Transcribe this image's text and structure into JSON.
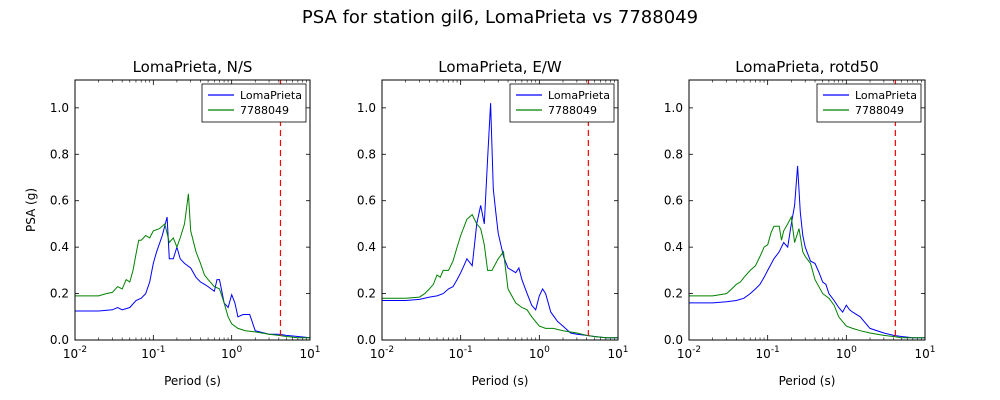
{
  "figure": {
    "suptitle": "PSA for station gil6, LomaPrieta vs 7788049"
  },
  "chart_data": [
    {
      "type": "line",
      "title": "LomaPrieta, N/S",
      "xlabel": "Period (s)",
      "ylabel": "PSA (g)",
      "xscale": "log",
      "xlim": [
        0.01,
        10
      ],
      "ylim": [
        0,
        1.12
      ],
      "x_ticks": [
        0.01,
        0.1,
        1,
        10
      ],
      "x_tick_labels": [
        "10",
        "10",
        "10",
        "10"
      ],
      "x_tick_exponents": [
        "-2",
        "-1",
        "0",
        "1"
      ],
      "y_ticks": [
        0,
        0.2,
        0.4,
        0.6,
        0.8,
        1.0
      ],
      "y_tick_labels": [
        "0.0",
        "0.2",
        "0.4",
        "0.6",
        "0.8",
        "1.0"
      ],
      "legend_position": "top-right",
      "reference_line": {
        "x": 4.2,
        "color": "#ff0000",
        "style": "dashed"
      },
      "series": [
        {
          "name": "LomaPrieta",
          "color": "#0000ff",
          "x": [
            0.01,
            0.02,
            0.03,
            0.035,
            0.04,
            0.05,
            0.06,
            0.07,
            0.08,
            0.09,
            0.1,
            0.11,
            0.13,
            0.15,
            0.16,
            0.18,
            0.2,
            0.22,
            0.25,
            0.3,
            0.35,
            0.4,
            0.45,
            0.5,
            0.6,
            0.65,
            0.7,
            0.8,
            0.9,
            1.0,
            1.1,
            1.2,
            1.4,
            1.7,
            2.0,
            3.0,
            4.0,
            5.0,
            7.0,
            10.0
          ],
          "y": [
            0.125,
            0.125,
            0.13,
            0.14,
            0.13,
            0.14,
            0.17,
            0.18,
            0.2,
            0.25,
            0.33,
            0.38,
            0.45,
            0.53,
            0.35,
            0.35,
            0.4,
            0.35,
            0.33,
            0.31,
            0.27,
            0.25,
            0.24,
            0.23,
            0.21,
            0.26,
            0.26,
            0.16,
            0.14,
            0.195,
            0.16,
            0.1,
            0.11,
            0.11,
            0.04,
            0.025,
            0.025,
            0.02,
            0.015,
            0.01
          ]
        },
        {
          "name": "7788049",
          "color": "#008000",
          "x": [
            0.01,
            0.02,
            0.025,
            0.03,
            0.035,
            0.04,
            0.045,
            0.05,
            0.055,
            0.06,
            0.065,
            0.07,
            0.08,
            0.09,
            0.1,
            0.12,
            0.14,
            0.16,
            0.18,
            0.2,
            0.22,
            0.25,
            0.28,
            0.3,
            0.35,
            0.4,
            0.45,
            0.5,
            0.6,
            0.7,
            0.8,
            0.9,
            1.0,
            1.2,
            1.5,
            2.0,
            3.0,
            4.0,
            5.0,
            7.0,
            10.0
          ],
          "y": [
            0.19,
            0.19,
            0.2,
            0.205,
            0.23,
            0.22,
            0.26,
            0.25,
            0.3,
            0.37,
            0.43,
            0.43,
            0.45,
            0.44,
            0.47,
            0.48,
            0.5,
            0.42,
            0.44,
            0.4,
            0.44,
            0.5,
            0.63,
            0.47,
            0.38,
            0.33,
            0.28,
            0.26,
            0.23,
            0.22,
            0.16,
            0.1,
            0.07,
            0.05,
            0.04,
            0.035,
            0.025,
            0.02,
            0.015,
            0.01,
            0.01
          ]
        }
      ]
    },
    {
      "type": "line",
      "title": "LomaPrieta, E/W",
      "xlabel": "Period (s)",
      "ylabel": "",
      "xscale": "log",
      "xlim": [
        0.01,
        10
      ],
      "ylim": [
        0,
        1.12
      ],
      "x_ticks": [
        0.01,
        0.1,
        1,
        10
      ],
      "x_tick_labels": [
        "10",
        "10",
        "10",
        "10"
      ],
      "x_tick_exponents": [
        "-2",
        "-1",
        "0",
        "1"
      ],
      "y_ticks": [
        0,
        0.2,
        0.4,
        0.6,
        0.8,
        1.0
      ],
      "y_tick_labels": [
        "0.0",
        "0.2",
        "0.4",
        "0.6",
        "0.8",
        "1.0"
      ],
      "legend_position": "top-right",
      "reference_line": {
        "x": 4.2,
        "color": "#ff0000",
        "style": "dashed"
      },
      "series": [
        {
          "name": "LomaPrieta",
          "color": "#0000ff",
          "x": [
            0.01,
            0.02,
            0.03,
            0.04,
            0.05,
            0.06,
            0.07,
            0.08,
            0.09,
            0.1,
            0.11,
            0.12,
            0.14,
            0.15,
            0.16,
            0.18,
            0.2,
            0.22,
            0.24,
            0.26,
            0.28,
            0.3,
            0.35,
            0.4,
            0.45,
            0.5,
            0.55,
            0.6,
            0.7,
            0.8,
            0.9,
            1.0,
            1.1,
            1.2,
            1.4,
            1.7,
            2.0,
            2.5,
            3.0,
            4.0,
            5.0,
            7.0,
            10.0
          ],
          "y": [
            0.17,
            0.17,
            0.175,
            0.185,
            0.19,
            0.2,
            0.22,
            0.23,
            0.26,
            0.29,
            0.32,
            0.35,
            0.32,
            0.41,
            0.5,
            0.58,
            0.5,
            0.78,
            1.02,
            0.65,
            0.55,
            0.46,
            0.36,
            0.31,
            0.3,
            0.29,
            0.31,
            0.26,
            0.2,
            0.15,
            0.13,
            0.19,
            0.22,
            0.2,
            0.12,
            0.08,
            0.06,
            0.03,
            0.025,
            0.02,
            0.015,
            0.01,
            0.01
          ]
        },
        {
          "name": "7788049",
          "color": "#008000",
          "x": [
            0.01,
            0.02,
            0.03,
            0.035,
            0.04,
            0.045,
            0.05,
            0.055,
            0.06,
            0.07,
            0.08,
            0.09,
            0.1,
            0.12,
            0.14,
            0.16,
            0.18,
            0.2,
            0.22,
            0.25,
            0.3,
            0.35,
            0.4,
            0.5,
            0.6,
            0.7,
            0.8,
            1.0,
            1.2,
            1.5,
            2.0,
            3.0,
            4.0,
            5.0,
            7.0,
            10.0
          ],
          "y": [
            0.18,
            0.18,
            0.185,
            0.2,
            0.22,
            0.24,
            0.28,
            0.27,
            0.3,
            0.3,
            0.34,
            0.4,
            0.45,
            0.52,
            0.54,
            0.5,
            0.48,
            0.41,
            0.3,
            0.3,
            0.35,
            0.38,
            0.22,
            0.16,
            0.14,
            0.13,
            0.1,
            0.06,
            0.05,
            0.05,
            0.04,
            0.03,
            0.02,
            0.015,
            0.01,
            0.01
          ]
        }
      ]
    },
    {
      "type": "line",
      "title": "LomaPrieta, rotd50",
      "xlabel": "Period (s)",
      "ylabel": "",
      "xscale": "log",
      "xlim": [
        0.01,
        10
      ],
      "ylim": [
        0,
        1.12
      ],
      "x_ticks": [
        0.01,
        0.1,
        1,
        10
      ],
      "x_tick_labels": [
        "10",
        "10",
        "10",
        "10"
      ],
      "x_tick_exponents": [
        "-2",
        "-1",
        "0",
        "1"
      ],
      "y_ticks": [
        0,
        0.2,
        0.4,
        0.6,
        0.8,
        1.0
      ],
      "y_tick_labels": [
        "0.0",
        "0.2",
        "0.4",
        "0.6",
        "0.8",
        "1.0"
      ],
      "legend_position": "top-right",
      "reference_line": {
        "x": 4.2,
        "color": "#ff0000",
        "style": "dashed"
      },
      "series": [
        {
          "name": "LomaPrieta",
          "color": "#0000ff",
          "x": [
            0.01,
            0.02,
            0.03,
            0.04,
            0.05,
            0.06,
            0.07,
            0.08,
            0.09,
            0.1,
            0.12,
            0.14,
            0.16,
            0.18,
            0.2,
            0.22,
            0.24,
            0.26,
            0.28,
            0.3,
            0.35,
            0.4,
            0.45,
            0.5,
            0.55,
            0.6,
            0.7,
            0.8,
            0.9,
            1.0,
            1.1,
            1.2,
            1.5,
            2.0,
            3.0,
            4.0,
            5.0,
            7.0,
            10.0
          ],
          "y": [
            0.16,
            0.16,
            0.165,
            0.17,
            0.18,
            0.2,
            0.22,
            0.24,
            0.27,
            0.3,
            0.35,
            0.38,
            0.42,
            0.4,
            0.5,
            0.58,
            0.75,
            0.55,
            0.45,
            0.4,
            0.34,
            0.33,
            0.29,
            0.25,
            0.24,
            0.2,
            0.17,
            0.14,
            0.12,
            0.15,
            0.13,
            0.12,
            0.1,
            0.05,
            0.03,
            0.02,
            0.015,
            0.01,
            0.01
          ]
        },
        {
          "name": "7788049",
          "color": "#008000",
          "x": [
            0.01,
            0.02,
            0.03,
            0.035,
            0.04,
            0.045,
            0.05,
            0.06,
            0.07,
            0.08,
            0.09,
            0.1,
            0.11,
            0.12,
            0.14,
            0.15,
            0.16,
            0.18,
            0.2,
            0.22,
            0.25,
            0.28,
            0.3,
            0.35,
            0.4,
            0.5,
            0.6,
            0.7,
            0.8,
            1.0,
            1.2,
            1.5,
            2.0,
            3.0,
            4.0,
            5.0,
            7.0,
            10.0
          ],
          "y": [
            0.19,
            0.19,
            0.2,
            0.22,
            0.24,
            0.25,
            0.27,
            0.3,
            0.32,
            0.36,
            0.4,
            0.41,
            0.46,
            0.49,
            0.49,
            0.43,
            0.47,
            0.5,
            0.53,
            0.42,
            0.48,
            0.38,
            0.36,
            0.33,
            0.26,
            0.2,
            0.18,
            0.15,
            0.1,
            0.06,
            0.05,
            0.04,
            0.03,
            0.02,
            0.015,
            0.01,
            0.01,
            0.01
          ]
        }
      ]
    }
  ]
}
